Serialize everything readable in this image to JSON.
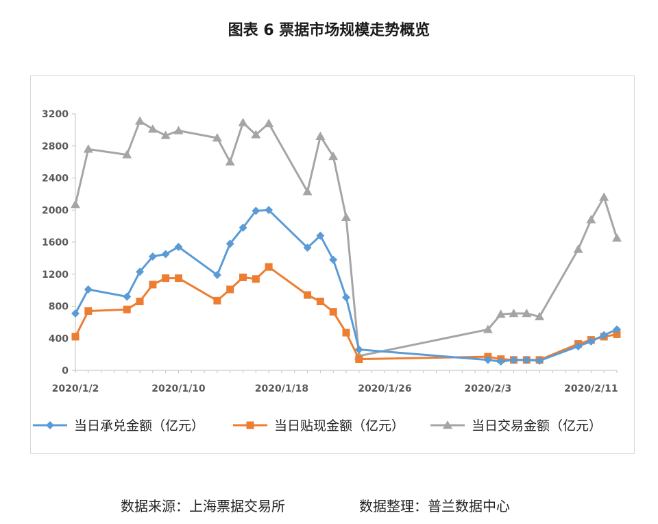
{
  "title": "图表 6  票据市场规模走势概览",
  "footer": {
    "source": "数据来源：上海票据交易所",
    "compiler": "数据整理：普兰数据中心"
  },
  "chart_data": {
    "type": "line",
    "ylim": [
      0,
      3200
    ],
    "yticks": [
      0,
      400,
      800,
      1200,
      1600,
      2000,
      2400,
      2800,
      3200
    ],
    "xlim": [
      "2020-01-02",
      "2020-02-13"
    ],
    "xtick_labels": [
      {
        "date": "2020-01-02",
        "label": "2020/1/2"
      },
      {
        "date": "2020-01-10",
        "label": "2020/1/10"
      },
      {
        "date": "2020-01-18",
        "label": "2020/1/18"
      },
      {
        "date": "2020-01-26",
        "label": "2020/1/26"
      },
      {
        "date": "2020-02-03",
        "label": "2020/2/3"
      },
      {
        "date": "2020-02-11",
        "label": "2020/2/11"
      }
    ],
    "x": [
      "2020-01-02",
      "2020-01-03",
      "2020-01-06",
      "2020-01-07",
      "2020-01-08",
      "2020-01-09",
      "2020-01-10",
      "2020-01-13",
      "2020-01-14",
      "2020-01-15",
      "2020-01-16",
      "2020-01-17",
      "2020-01-20",
      "2020-01-21",
      "2020-01-22",
      "2020-01-23",
      "2020-01-24",
      "2020-02-03",
      "2020-02-04",
      "2020-02-05",
      "2020-02-06",
      "2020-02-07",
      "2020-02-10",
      "2020-02-11",
      "2020-02-12",
      "2020-02-13"
    ],
    "series": [
      {
        "name": "当日承兑金额（亿元）",
        "color": "#5b9bd5",
        "marker": "diamond",
        "values": [
          710,
          1010,
          920,
          1230,
          1420,
          1450,
          1540,
          1190,
          1580,
          1780,
          1990,
          2000,
          1530,
          1680,
          1380,
          910,
          260,
          130,
          110,
          130,
          130,
          120,
          300,
          360,
          440,
          510
        ]
      },
      {
        "name": "当日贴现金额（亿元）",
        "color": "#ed7d31",
        "marker": "square",
        "values": [
          420,
          740,
          760,
          860,
          1070,
          1150,
          1150,
          870,
          1010,
          1160,
          1140,
          1290,
          940,
          860,
          730,
          470,
          140,
          170,
          140,
          130,
          130,
          130,
          330,
          380,
          420,
          450
        ]
      },
      {
        "name": "当日交易金额（亿元）",
        "color": "#a5a5a5",
        "marker": "triangle",
        "values": [
          2070,
          2760,
          2690,
          3110,
          3010,
          2930,
          2990,
          2900,
          2600,
          3090,
          2940,
          3080,
          2230,
          2920,
          2670,
          1910,
          180,
          510,
          700,
          710,
          710,
          670,
          1510,
          1880,
          2160,
          1650
        ]
      }
    ]
  }
}
